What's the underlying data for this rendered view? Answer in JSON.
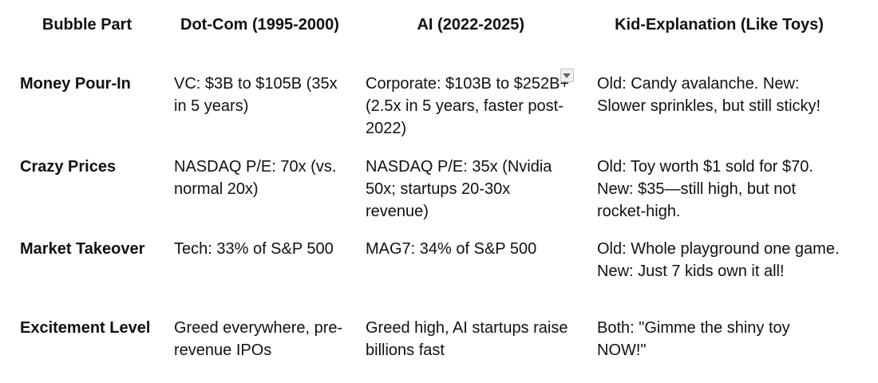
{
  "page": {
    "background": "#ffffff",
    "text_color": "#111111"
  },
  "table": {
    "headers": [
      "Bubble Part",
      "Dot-Com (1995-2000)",
      "AI (2022-2025)",
      "Kid-Explanation (Like Toys)"
    ],
    "rows": [
      {
        "part": "Money Pour-In",
        "dotcom": "VC: $3B to $105B (35x in 5 years)",
        "ai_head": "Corporate: $103B to $252B",
        "ai_plus": "+",
        "ai_cont": "(2.5x in 5 years, faster post-2022)",
        "kid": "Old: Candy avalanche. New: Slower sprinkles, but still sticky!"
      },
      {
        "part": "Crazy Prices",
        "dotcom": "NASDAQ P/E: 70x (vs. normal 20x)",
        "ai": "NASDAQ P/E: 35x (Nvidia 50x; startups 20-30x revenue)",
        "kid": "Old: Toy worth $1 sold for $70. New: $35—still high, but not rocket-high."
      },
      {
        "part": "Market Takeover",
        "dotcom": "Tech: 33% of S&P 500",
        "ai": "MAG7: 34% of S&P 500",
        "kid": "Old: Whole playground one game. New: Just 7 kids own it all!"
      },
      {
        "part": "Excitement Level",
        "dotcom": "Greed everywhere, pre-revenue IPOs",
        "ai": "Greed high, AI startups raise billions fast",
        "kid": "Both: \"Gimme the shiny toy NOW!\""
      }
    ],
    "icons": {
      "dropdown_marker": {
        "name": "dropdown-marker-icon",
        "glyph": "▼",
        "bg": "#f1f1f1",
        "border": "#bdbdbd",
        "arrow": "#616161"
      }
    }
  }
}
